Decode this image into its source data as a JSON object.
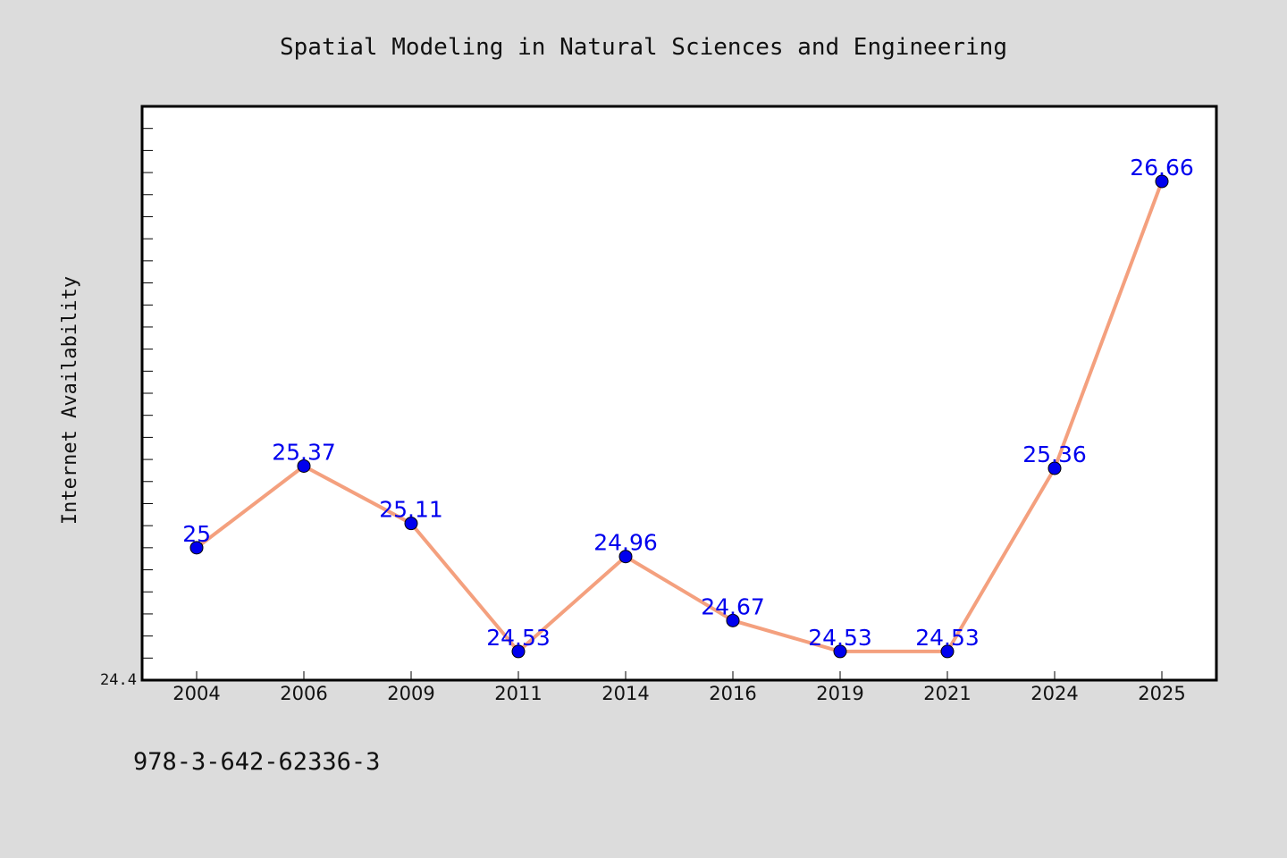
{
  "chart_data": {
    "type": "line",
    "title": "Spatial Modeling in Natural Sciences and Engineering",
    "xlabel": "",
    "ylabel": "Internet Availability",
    "categories": [
      "2004",
      "2006",
      "2009",
      "2011",
      "2014",
      "2016",
      "2019",
      "2021",
      "2024",
      "2025"
    ],
    "series": [
      {
        "values": [
          25,
          25.37,
          25.11,
          24.53,
          24.96,
          24.67,
          24.53,
          24.53,
          25.36,
          26.66
        ],
        "labels": [
          "25",
          "25.37",
          "25.11",
          "24.53",
          "24.96",
          "24.67",
          "24.53",
          "24.53",
          "25.36",
          "26.66"
        ]
      }
    ],
    "ylim": [
      24.4,
      27.0
    ],
    "ytick_label": "24.4",
    "grid": false,
    "legend": "none"
  },
  "footer": {
    "isbn": "978-3-642-62336-3"
  },
  "colors": {
    "background": "#dcdcdc",
    "plot_background": "#ffffff",
    "line": "#f4a07e",
    "marker": "#0000ee",
    "data_label": "#0000ee",
    "axis": "#000000"
  }
}
